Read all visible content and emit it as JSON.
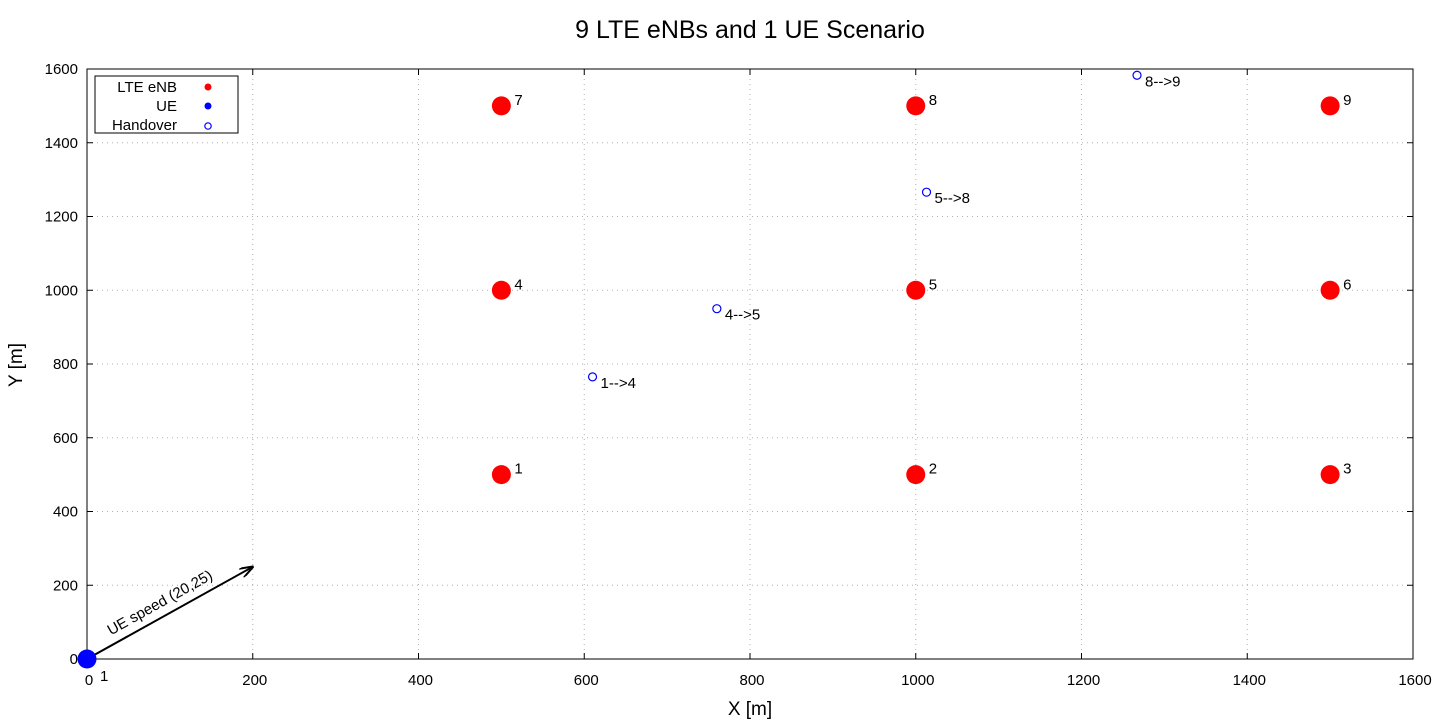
{
  "chart_data": {
    "type": "scatter",
    "title": "9 LTE eNBs and 1 UE Scenario",
    "xlabel": "X [m]",
    "ylabel": "Y [m]",
    "xlim": [
      0,
      1600
    ],
    "ylim": [
      0,
      1600
    ],
    "xticks": [
      0,
      200,
      400,
      600,
      800,
      1000,
      1200,
      1400,
      1600
    ],
    "yticks": [
      0,
      200,
      400,
      600,
      800,
      1000,
      1200,
      1400,
      1600
    ],
    "grid": true,
    "legend_position": "top-left",
    "series": [
      {
        "name": "LTE eNB",
        "color": "#ff0000",
        "marker": "filled-circle",
        "points": [
          {
            "x": 500,
            "y": 500,
            "label": "1"
          },
          {
            "x": 1000,
            "y": 500,
            "label": "2"
          },
          {
            "x": 1500,
            "y": 500,
            "label": "3"
          },
          {
            "x": 500,
            "y": 1000,
            "label": "4"
          },
          {
            "x": 1000,
            "y": 1000,
            "label": "5"
          },
          {
            "x": 1500,
            "y": 1000,
            "label": "6"
          },
          {
            "x": 500,
            "y": 1500,
            "label": "7"
          },
          {
            "x": 1000,
            "y": 1500,
            "label": "8"
          },
          {
            "x": 1500,
            "y": 1500,
            "label": "9"
          }
        ]
      },
      {
        "name": "UE",
        "color": "#0000ff",
        "marker": "filled-circle",
        "points": [
          {
            "x": 0,
            "y": 0,
            "label": "1"
          }
        ]
      },
      {
        "name": "Handover",
        "color": "#0000ff",
        "marker": "open-circle",
        "points": [
          {
            "x": 610,
            "y": 765,
            "label": "1-->4"
          },
          {
            "x": 760,
            "y": 950,
            "label": "4-->5"
          },
          {
            "x": 1013,
            "y": 1266,
            "label": "5-->8"
          },
          {
            "x": 1267,
            "y": 1583,
            "label": "8-->9"
          }
        ]
      }
    ],
    "annotations": [
      {
        "type": "arrow",
        "from": [
          0,
          0
        ],
        "to": [
          200,
          250
        ],
        "text": "UE speed (20,25)"
      }
    ]
  }
}
